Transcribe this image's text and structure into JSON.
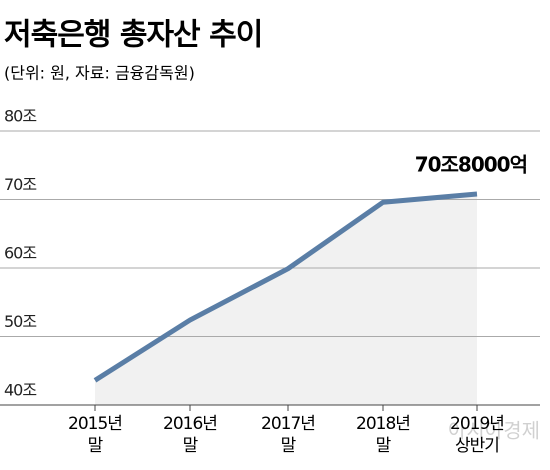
{
  "chart_data": {
    "type": "line",
    "title": "저축은행 총자산 추이",
    "subtitle": "(단위: 원, 자료: 금융감독원)",
    "categories": [
      "2015년\n말",
      "2016년\n말",
      "2017년\n말",
      "2018년\n말",
      "2019년\n상반기"
    ],
    "values": [
      43.6,
      52.4,
      59.9,
      69.6,
      70.8
    ],
    "value_labels": [
      null,
      null,
      null,
      null,
      "70조8000억"
    ],
    "color": "#5a7ea6",
    "area_color": "#f1f1f1",
    "ylim": [
      40,
      80
    ],
    "yticks": [
      {
        "value": 40,
        "label": "40조"
      },
      {
        "value": 50,
        "label": "50조"
      },
      {
        "value": 60,
        "label": "60조"
      },
      {
        "value": 70,
        "label": "70조"
      },
      {
        "value": 80,
        "label": "80조"
      }
    ],
    "grid": true,
    "watermark": "아시아경제"
  }
}
